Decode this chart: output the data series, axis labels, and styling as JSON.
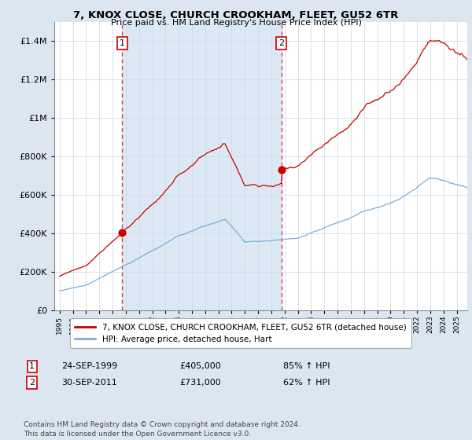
{
  "title1": "7, KNOX CLOSE, CHURCH CROOKHAM, FLEET, GU52 6TR",
  "title2": "Price paid vs. HM Land Registry's House Price Index (HPI)",
  "legend_line1": "7, KNOX CLOSE, CHURCH CROOKHAM, FLEET, GU52 6TR (detached house)",
  "legend_line2": "HPI: Average price, detached house, Hart",
  "hpi_color": "#7aaed6",
  "price_color": "#cc0000",
  "shade_color": "#dce9f5",
  "background_color": "#dce6f1",
  "plot_bg_color": "#ffffff",
  "sale1_year": 1999.73,
  "sale1_price": 405000,
  "sale2_year": 2011.75,
  "sale2_price": 731000,
  "annotation1": {
    "label": "1",
    "date": "24-SEP-1999",
    "price": "£405,000",
    "pct": "85% ↑ HPI"
  },
  "annotation2": {
    "label": "2",
    "date": "30-SEP-2011",
    "price": "£731,000",
    "pct": "62% ↑ HPI"
  },
  "footer": "Contains HM Land Registry data © Crown copyright and database right 2024.\nThis data is licensed under the Open Government Licence v3.0.",
  "ylim": [
    0,
    1500000
  ],
  "yticks": [
    0,
    200000,
    400000,
    600000,
    800000,
    1000000,
    1200000,
    1400000
  ],
  "xstart": 1995,
  "xend": 2025
}
